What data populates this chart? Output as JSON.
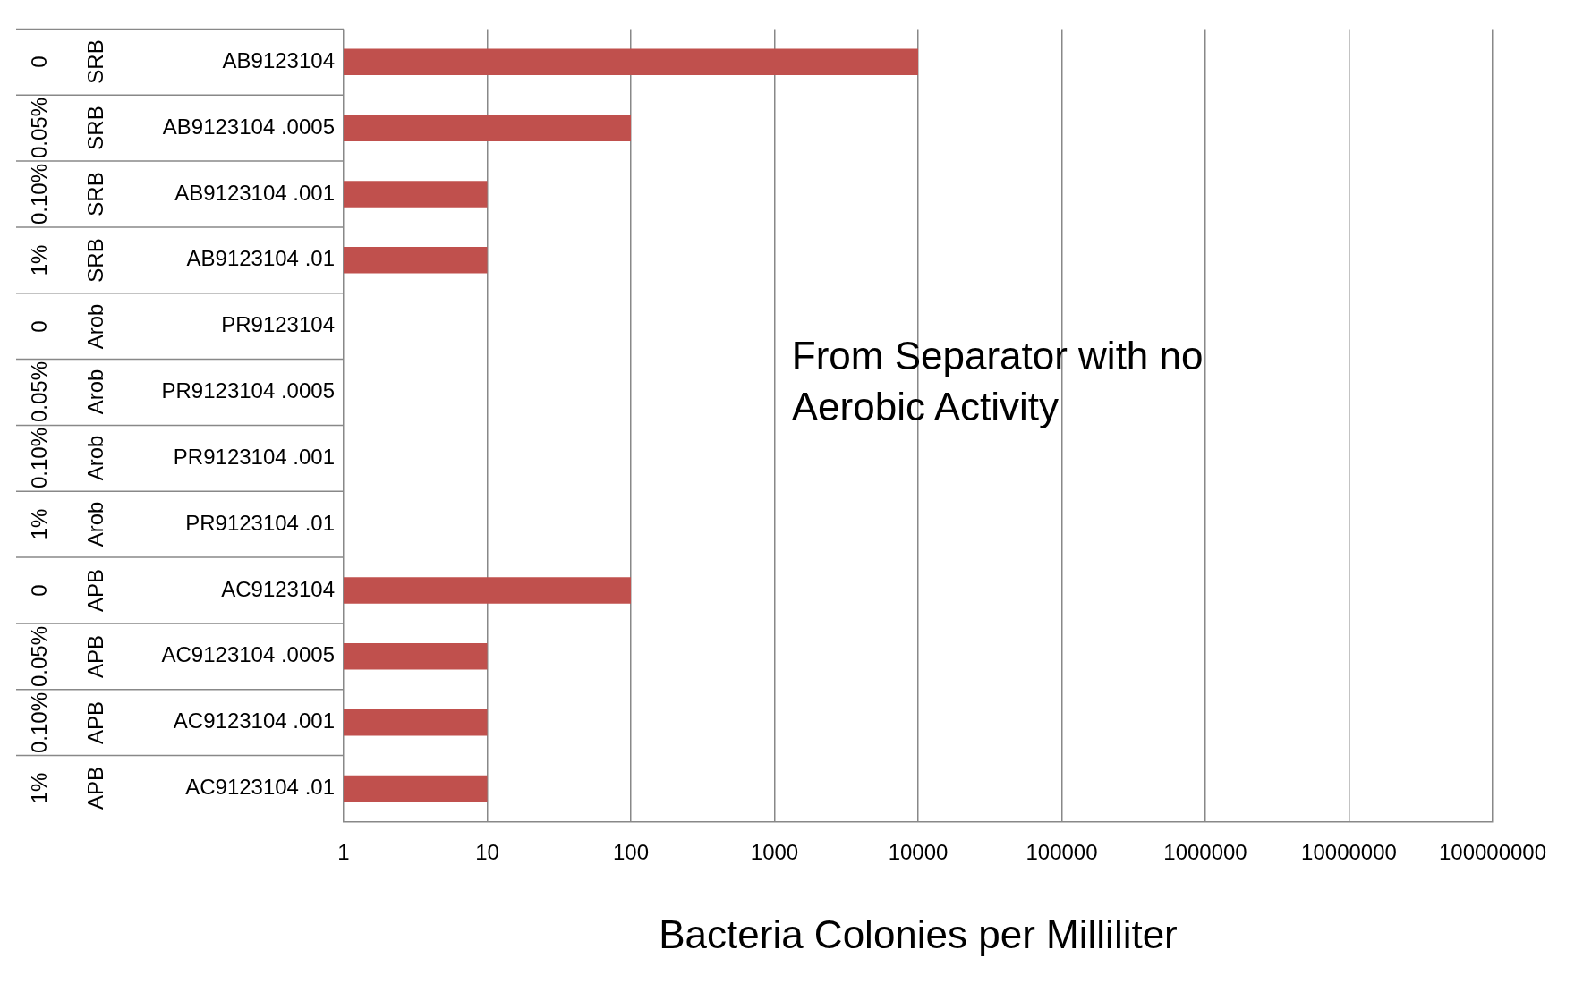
{
  "chart_data": {
    "type": "bar",
    "orientation": "horizontal",
    "log": "x",
    "categories": [
      "AB9123104",
      "AB9123104 .0005",
      "AB9123104 .001",
      "AB9123104 .01",
      "PR9123104",
      "PR9123104 .0005",
      "PR9123104 .001",
      "PR9123104 .01",
      "AC9123104",
      "AC9123104 .0005",
      "AC9123104 .001",
      "AC9123104 .01"
    ],
    "values": [
      10000,
      100,
      10,
      10,
      null,
      null,
      null,
      null,
      100,
      10,
      10,
      10
    ],
    "color": "#c0504d",
    "xlim": [
      1,
      100000000
    ],
    "xticks": [
      1,
      10,
      100,
      1000,
      10000,
      100000,
      1000000,
      10000000,
      100000000
    ],
    "xlabel": "Bacteria Colonies per Milliliter",
    "grid": "x",
    "legend": false,
    "annotations": [
      "From Separator with no Aerobic Activity",
      "0",
      "SRB",
      "0.05%",
      "SRB",
      "0.10%",
      "SRB",
      "1%",
      "SRB",
      "0",
      "Arob",
      "0.05%",
      "Arob",
      "0.10%",
      "Arob",
      "1%",
      "Arob",
      "0",
      "APB",
      "0.05%",
      "APB",
      "0.10%",
      "APB",
      "1%",
      "APB"
    ]
  }
}
